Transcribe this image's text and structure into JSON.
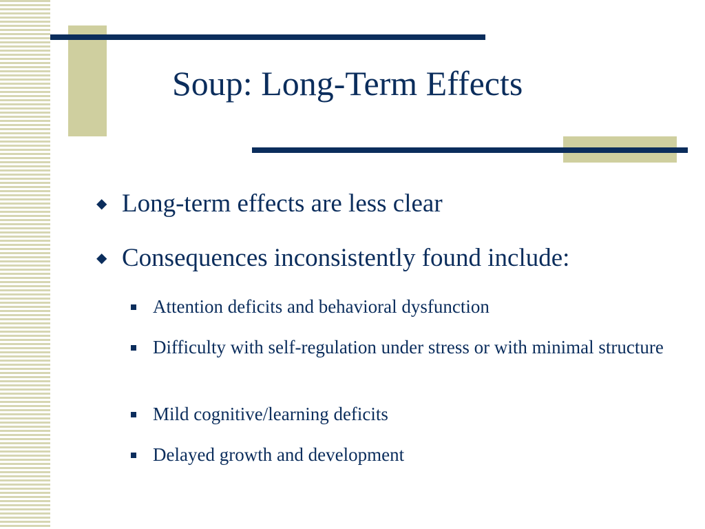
{
  "slide": {
    "title": "Soup: Long-Term Effects",
    "bullets": [
      {
        "text": "Long-term effects are less clear",
        "marker": "diamond-bullet-icon"
      },
      {
        "text": "Consequences inconsistently found include:",
        "marker": "diamond-bullet-icon",
        "subbullets": [
          {
            "text": "Attention deficits and behavioral dysfunction",
            "marker": "square-bullet-icon"
          },
          {
            "text": "Difficulty with self-regulation under stress or with minimal structure",
            "marker": "square-bullet-icon"
          },
          {
            "text": "Mild cognitive/learning deficits",
            "marker": "square-bullet-icon"
          },
          {
            "text": "Delayed growth and development",
            "marker": "square-bullet-icon"
          }
        ]
      }
    ]
  },
  "theme": {
    "text_color": "#0b2d5c",
    "accent_tan": "#cfcf9f",
    "stripe_color": "#d6d6b2",
    "background": "#ffffff"
  }
}
